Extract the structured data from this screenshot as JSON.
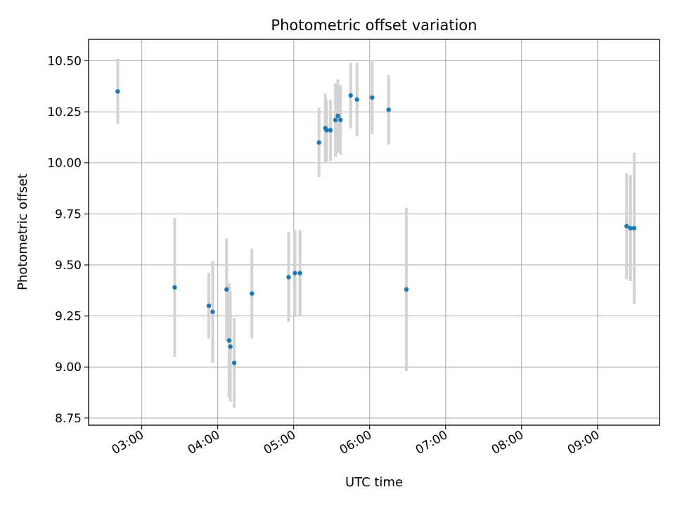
{
  "chart_data": {
    "type": "scatter",
    "title": "Photometric offset variation",
    "xlabel": "UTC time",
    "ylabel": "Photometric offset",
    "x_ticks": [
      "03:00",
      "04:00",
      "05:00",
      "06:00",
      "07:00",
      "08:00",
      "09:00"
    ],
    "y_ticks": [
      "8.75",
      "9.00",
      "9.25",
      "9.50",
      "9.75",
      "10.00",
      "10.25",
      "10.50"
    ],
    "xlim": [
      "02:18",
      "09:49"
    ],
    "ylim": [
      8.715,
      10.605
    ],
    "grid": true,
    "point_color": "#1f77b4",
    "errorbar_color": "#d3d3d3",
    "points": [
      {
        "x": "02:41",
        "y": 10.35,
        "err": 0.16
      },
      {
        "x": "03:26",
        "y": 9.39,
        "err": 0.34
      },
      {
        "x": "03:53",
        "y": 9.3,
        "err": 0.16
      },
      {
        "x": "03:56",
        "y": 9.27,
        "err": 0.25
      },
      {
        "x": "04:07",
        "y": 9.38,
        "err": 0.25
      },
      {
        "x": "04:09",
        "y": 9.13,
        "err": 0.28
      },
      {
        "x": "04:10",
        "y": 9.1,
        "err": 0.27
      },
      {
        "x": "04:13",
        "y": 9.02,
        "err": 0.22
      },
      {
        "x": "04:27",
        "y": 9.36,
        "err": 0.22
      },
      {
        "x": "04:56",
        "y": 9.44,
        "err": 0.22
      },
      {
        "x": "05:01",
        "y": 9.46,
        "err": 0.21
      },
      {
        "x": "05:05",
        "y": 9.46,
        "err": 0.21
      },
      {
        "x": "05:20",
        "y": 10.1,
        "err": 0.17
      },
      {
        "x": "05:25",
        "y": 10.17,
        "err": 0.17
      },
      {
        "x": "05:26",
        "y": 10.16,
        "err": 0.15
      },
      {
        "x": "05:29",
        "y": 10.16,
        "err": 0.15
      },
      {
        "x": "05:33",
        "y": 10.21,
        "err": 0.18
      },
      {
        "x": "05:35",
        "y": 10.23,
        "err": 0.18
      },
      {
        "x": "05:37",
        "y": 10.21,
        "err": 0.17
      },
      {
        "x": "05:45",
        "y": 10.33,
        "err": 0.16
      },
      {
        "x": "05:50",
        "y": 10.31,
        "err": 0.18
      },
      {
        "x": "06:02",
        "y": 10.32,
        "err": 0.18
      },
      {
        "x": "06:15",
        "y": 10.26,
        "err": 0.17
      },
      {
        "x": "06:29",
        "y": 9.38,
        "err": 0.4
      },
      {
        "x": "09:23",
        "y": 9.69,
        "err": 0.26
      },
      {
        "x": "09:26",
        "y": 9.68,
        "err": 0.26
      },
      {
        "x": "09:29",
        "y": 9.68,
        "err": 0.37
      }
    ]
  }
}
